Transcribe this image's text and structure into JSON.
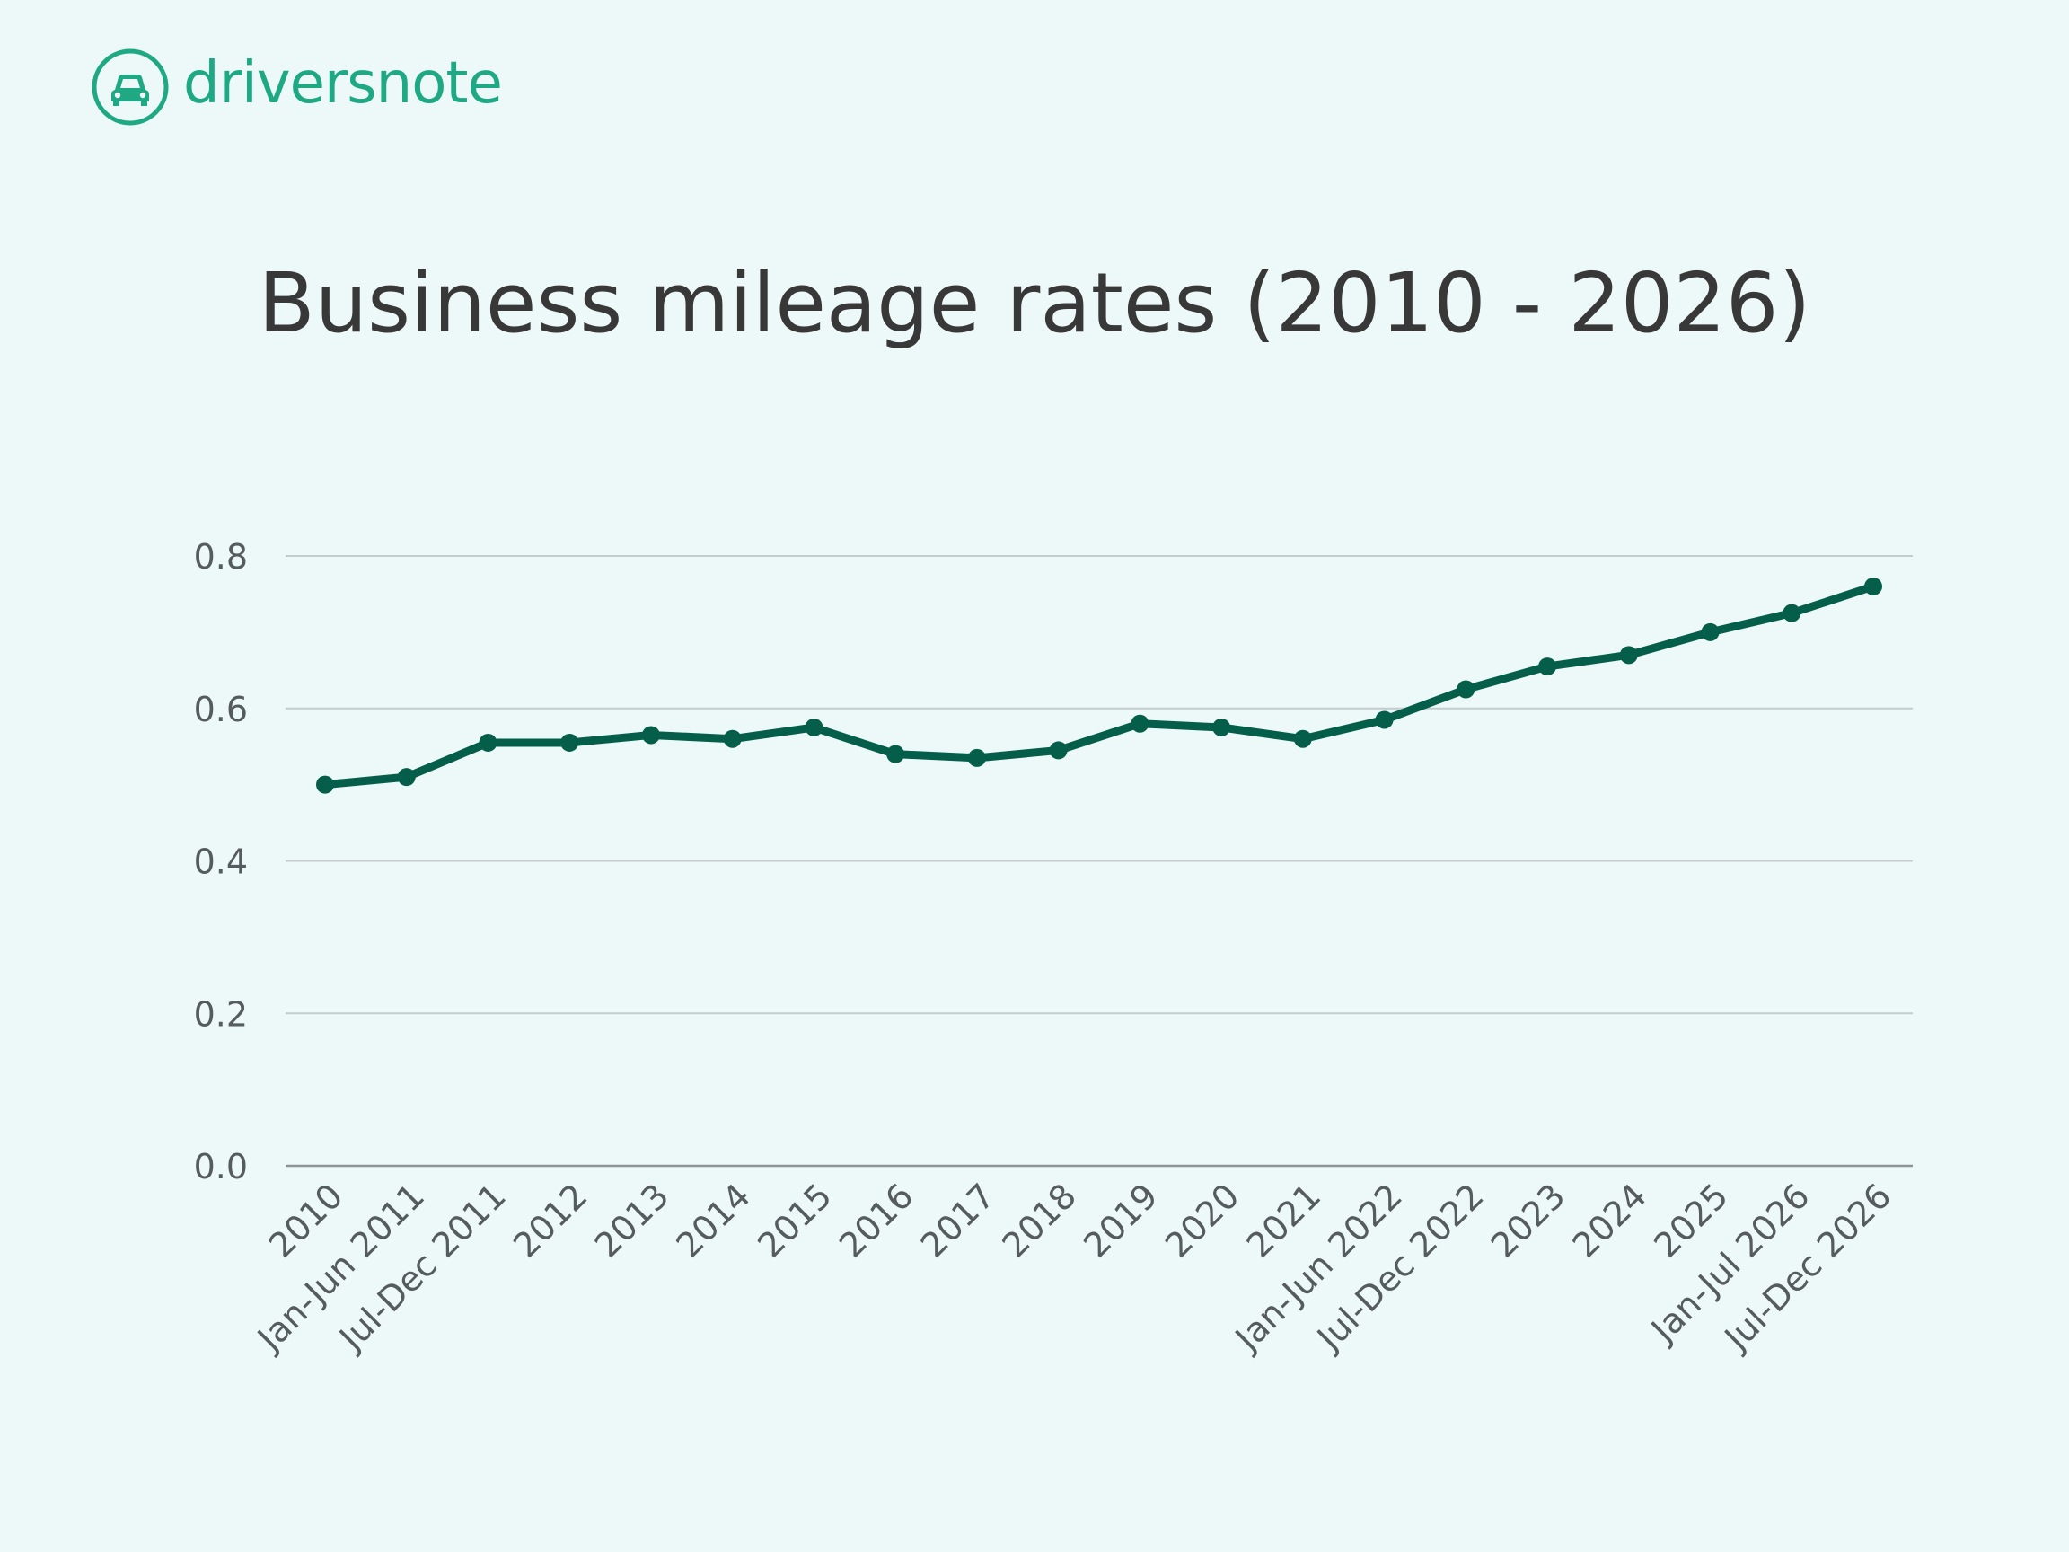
{
  "colors": {
    "background": "#ecf9f8",
    "brand": "#1ea883",
    "line": "#045e49",
    "grid": "#c3ccce",
    "axis": "#8e9597",
    "title_text": "#383838",
    "tick_text": "#555b5e"
  },
  "brand": {
    "name": "driversnote",
    "icon": "car-icon"
  },
  "chart_data": {
    "type": "line",
    "title": "Business mileage rates (2010 - 2026)",
    "xlabel": "",
    "ylabel": "",
    "ylim": [
      0,
      0.8
    ],
    "yticks": [
      "0.0",
      "0.2",
      "0.4",
      "0.6",
      "0.8"
    ],
    "grid": true,
    "legend": "none",
    "categories": [
      "2010",
      "Jan-Jun 2011",
      "Jul-Dec 2011",
      "2012",
      "2013",
      "2014",
      "2015",
      "2016",
      "2017",
      "2018",
      "2019",
      "2020",
      "2021",
      "Jan-Jun 2022",
      "Jul-Dec 2022",
      "2023",
      "2024",
      "2025",
      "Jan-Jul 2026",
      "Jul-Dec 2026"
    ],
    "series": [
      {
        "values": [
          0.5,
          0.51,
          0.555,
          0.555,
          0.565,
          0.56,
          0.575,
          0.54,
          0.535,
          0.545,
          0.58,
          0.575,
          0.56,
          0.585,
          0.625,
          0.655,
          0.67,
          0.7,
          0.725,
          0.76
        ]
      }
    ]
  }
}
